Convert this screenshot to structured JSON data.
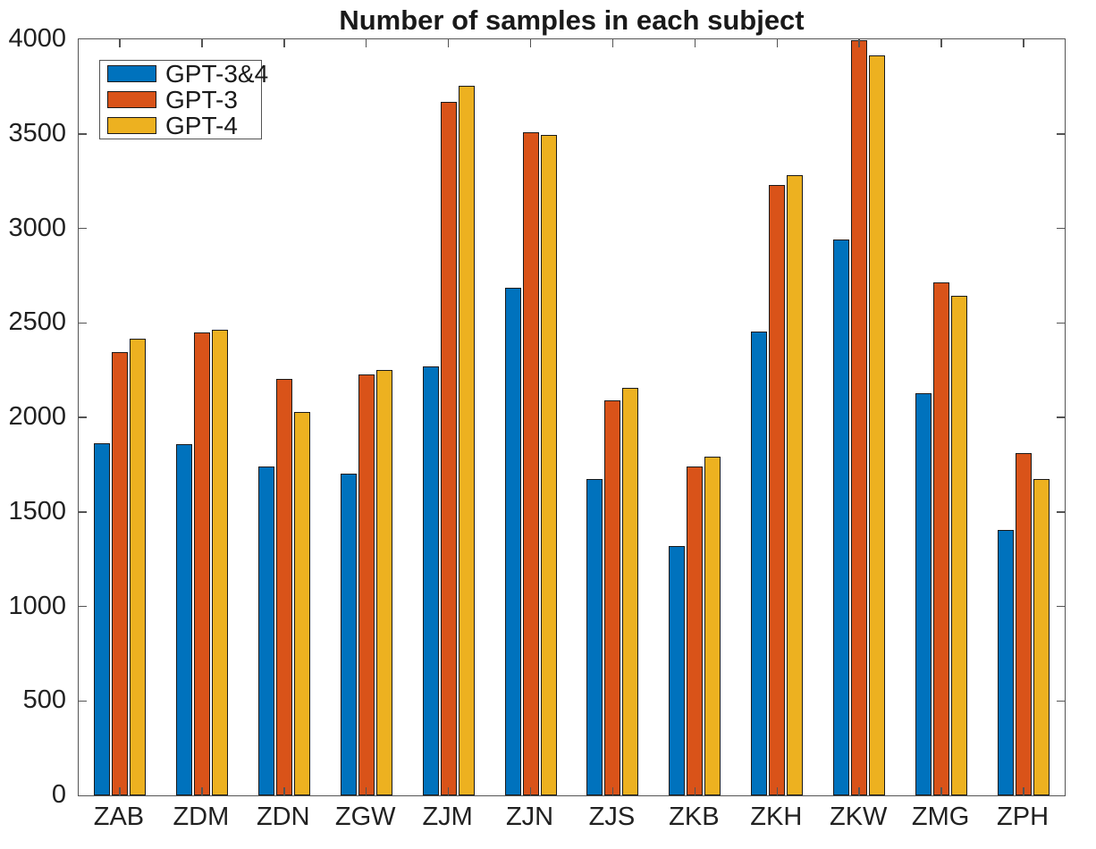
{
  "title": "Number of samples in each subject",
  "chart_data": {
    "type": "bar",
    "title": "Number of samples in each subject",
    "categories": [
      "ZAB",
      "ZDM",
      "ZDN",
      "ZGW",
      "ZJM",
      "ZJN",
      "ZJS",
      "ZKB",
      "ZKH",
      "ZKW",
      "ZMG",
      "ZPH"
    ],
    "series": [
      {
        "name": "GPT-3&4",
        "color": "#0072BD",
        "values": [
          1865,
          1860,
          1740,
          1700,
          2270,
          2685,
          1675,
          1320,
          2455,
          2940,
          2130,
          1405
        ]
      },
      {
        "name": "GPT-3",
        "color": "#D95319",
        "values": [
          2345,
          2450,
          2205,
          2225,
          3670,
          3510,
          2090,
          1740,
          3230,
          3995,
          2715,
          1810
        ]
      },
      {
        "name": "GPT-4",
        "color": "#EDB120",
        "values": [
          2415,
          2465,
          2030,
          2250,
          3755,
          3495,
          2155,
          1790,
          3280,
          3915,
          2645,
          1675
        ]
      }
    ],
    "ylim": [
      0,
      4000
    ],
    "yticks": [
      0,
      500,
      1000,
      1500,
      2000,
      2500,
      3000,
      3500,
      4000
    ],
    "xlabel": "",
    "ylabel": "",
    "grid": false,
    "legend_position": "top-left",
    "bar_edge_color": "#1a1a1a",
    "axis_color": "#545454"
  }
}
